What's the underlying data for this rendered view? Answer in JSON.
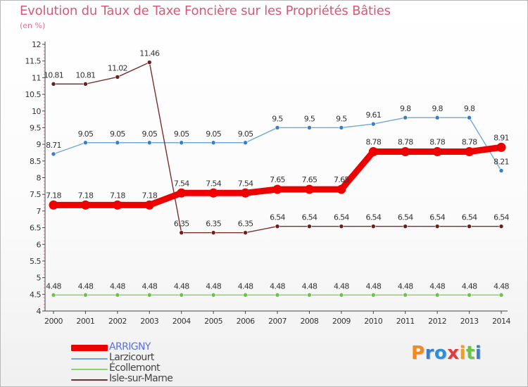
{
  "header": {
    "title": "Evolution du Taux de Taxe Foncière sur les Propriétés Bâties",
    "unit": "(en %)"
  },
  "chart_data": {
    "type": "line",
    "title": "Evolution du Taux de Taxe Foncière sur les Propriétés Bâties",
    "subtitle": "(en %)",
    "xlabel": "",
    "ylabel": "",
    "ylim": [
      4,
      12
    ],
    "yticks": [
      "4",
      "4.5",
      "5",
      "5.5",
      "6",
      "6.5",
      "7",
      "7.5",
      "8",
      "8.5",
      "9",
      "9.5",
      "10",
      "10.5",
      "11",
      "11.5",
      "12"
    ],
    "x": [
      "2000",
      "2001",
      "2002",
      "2003",
      "2004",
      "2005",
      "2006",
      "2007",
      "2008",
      "2009",
      "2010",
      "2011",
      "2012",
      "2013",
      "2014"
    ],
    "grid": false,
    "legend": "bottom-left",
    "series": [
      {
        "name": "ARRIGNY",
        "color": "#ee0000",
        "marker_color": "#ee0000",
        "emphasis": true,
        "values": [
          7.18,
          7.18,
          7.18,
          7.18,
          7.54,
          7.54,
          7.54,
          7.65,
          7.65,
          7.65,
          8.78,
          8.78,
          8.78,
          8.78,
          8.91
        ],
        "labels": [
          "7.18",
          "7.18",
          "7.18",
          "7.18",
          "7.54",
          "7.54",
          "7.54",
          "7.65",
          "7.65",
          "7.65",
          "8.78",
          "8.78",
          "8.78",
          "8.78",
          "8.91"
        ]
      },
      {
        "name": "Larzicourt",
        "color": "#6fa8d6",
        "marker_color": "#3a7fc4",
        "emphasis": false,
        "values": [
          8.71,
          9.05,
          9.05,
          9.05,
          9.05,
          9.05,
          9.05,
          9.5,
          9.5,
          9.5,
          9.61,
          9.8,
          9.8,
          9.8,
          8.21
        ],
        "labels": [
          "8.71",
          "9.05",
          "9.05",
          "9.05",
          "9.05",
          "9.05",
          "9.05",
          "9.5",
          "9.5",
          "9.5",
          "9.61",
          "9.8",
          "9.8",
          "9.8",
          "8.21"
        ]
      },
      {
        "name": "Écollemont",
        "color": "#88d36a",
        "marker_color": "#6cc24a",
        "emphasis": false,
        "values": [
          4.48,
          4.48,
          4.48,
          4.48,
          4.48,
          4.48,
          4.48,
          4.48,
          4.48,
          4.48,
          4.48,
          4.48,
          4.48,
          4.48,
          4.48
        ],
        "labels": [
          "4.48",
          "4.48",
          "4.48",
          "4.48",
          "4.48",
          "4.48",
          "4.48",
          "4.48",
          "4.48",
          "4.48",
          "4.48",
          "4.48",
          "4.48",
          "4.48",
          "4.48"
        ]
      },
      {
        "name": "Isle-sur-Marne",
        "color": "#7a2f2f",
        "marker_color": "#6a1f1f",
        "emphasis": false,
        "values": [
          10.81,
          10.81,
          11.02,
          11.46,
          6.35,
          6.35,
          6.35,
          6.54,
          6.54,
          6.54,
          6.54,
          6.54,
          6.54,
          6.54,
          6.54
        ],
        "labels": [
          "10.81",
          "10.81",
          "11.02",
          "11.46",
          "6.35",
          "6.35",
          "6.35",
          "6.54",
          "6.54",
          "6.54",
          "6.54",
          "6.54",
          "6.54",
          "6.54",
          "6.54"
        ]
      }
    ]
  },
  "logo": {
    "letters": [
      "P",
      "r",
      "o",
      "x",
      "i",
      "t",
      "i"
    ],
    "colors": [
      "#f08a1c",
      "#3a7fc4",
      "#2e8fd6",
      "#e23b3b",
      "#f0a020",
      "#6cc24a",
      "#3a7fc4"
    ]
  }
}
